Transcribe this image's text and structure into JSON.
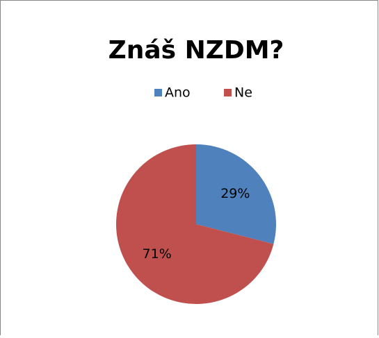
{
  "chart_data": {
    "type": "pie",
    "title": "Znáš NZDM?",
    "categories": [
      "Ano",
      "Ne"
    ],
    "values": [
      29,
      71
    ],
    "value_labels": [
      "29%",
      "71%"
    ],
    "colors": [
      "#4f81bd",
      "#c0504d"
    ],
    "legend": "top"
  }
}
